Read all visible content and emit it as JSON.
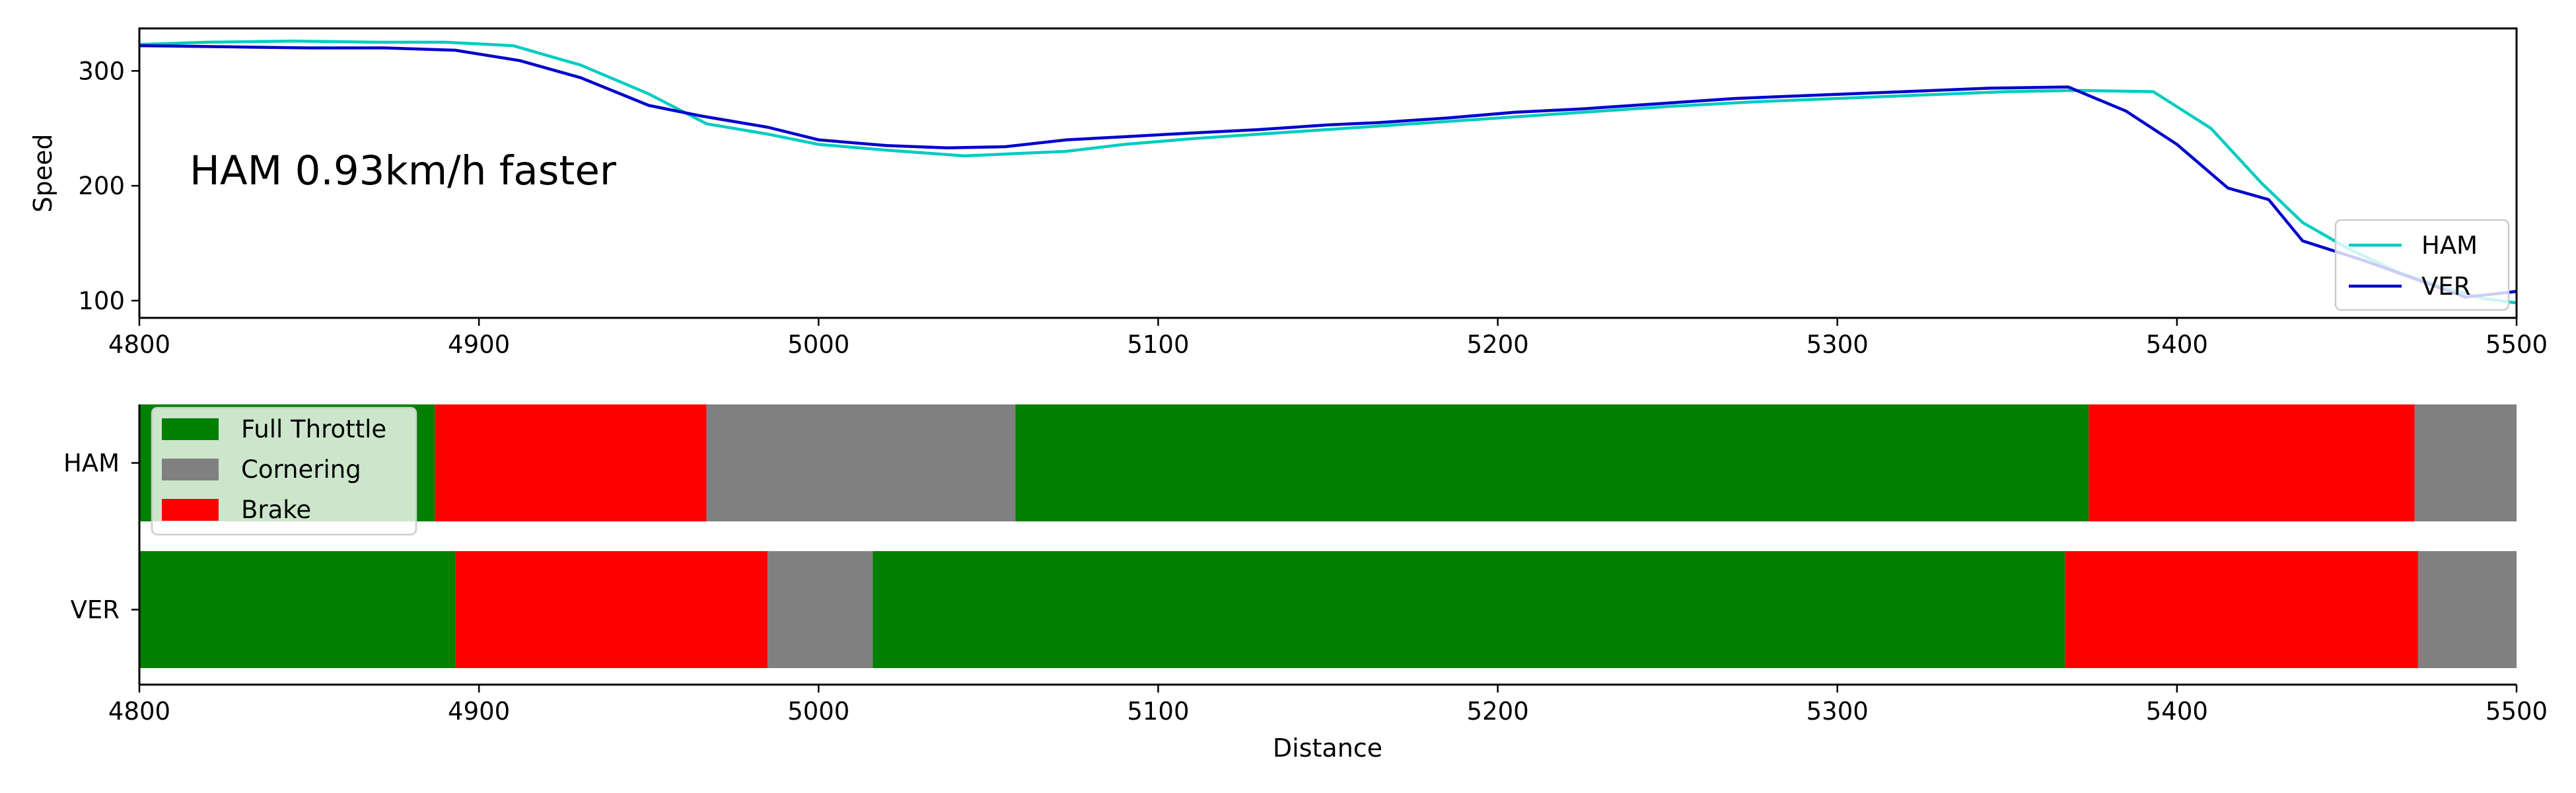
{
  "chart_data": [
    {
      "type": "line",
      "title": "",
      "xlabel": "",
      "ylabel": "Speed",
      "xlim": [
        4800,
        5500
      ],
      "ylim": [
        85,
        337
      ],
      "xticks": [
        4800,
        4900,
        5000,
        5100,
        5200,
        5300,
        5400,
        5500
      ],
      "yticks": [
        100,
        200,
        300
      ],
      "annotation": "HAM 0.93km/h faster",
      "legend": {
        "placement": "lower-right"
      },
      "grid": false,
      "series": [
        {
          "name": "HAM",
          "color": "#00ccc0",
          "x": [
            4800,
            4820,
            4845,
            4870,
            4890,
            4910,
            4930,
            4950,
            4967,
            4985,
            5000,
            5020,
            5043,
            5073,
            5090,
            5110,
            5130,
            5150,
            5175,
            5200,
            5225,
            5250,
            5275,
            5300,
            5325,
            5350,
            5370,
            5393,
            5410,
            5425,
            5437,
            5450,
            5465,
            5478,
            5490,
            5500
          ],
          "y": [
            323,
            325,
            326,
            325,
            325,
            322,
            305,
            280,
            254,
            245,
            236,
            231,
            226,
            230,
            236,
            241,
            245,
            249,
            254,
            259,
            264,
            269,
            273,
            276,
            279,
            282,
            283,
            282,
            250,
            202,
            168,
            146,
            125,
            112,
            102,
            98
          ]
        },
        {
          "name": "VER",
          "color": "#0000cc",
          "x": [
            4800,
            4825,
            4850,
            4872,
            4893,
            4912,
            4930,
            4950,
            4965,
            4985,
            5000,
            5020,
            5038,
            5055,
            5073,
            5092,
            5110,
            5130,
            5150,
            5165,
            5185,
            5205,
            5225,
            5245,
            5270,
            5295,
            5320,
            5345,
            5368,
            5385,
            5400,
            5415,
            5427,
            5437,
            5455,
            5470,
            5485,
            5500
          ],
          "y": [
            322,
            321,
            320,
            320,
            318,
            309,
            294,
            270,
            261,
            251,
            240,
            235,
            233,
            234,
            240,
            243,
            246,
            249,
            253,
            255,
            259,
            264,
            267,
            271,
            276,
            279,
            282,
            285,
            286,
            265,
            236,
            198,
            188,
            152,
            135,
            119,
            103,
            108
          ]
        }
      ]
    },
    {
      "type": "bar",
      "orientation": "horizontal-stacked",
      "xlabel": "Distance",
      "ylabel": "",
      "xlim": [
        4800,
        5500
      ],
      "xticks": [
        4800,
        4900,
        5000,
        5100,
        5200,
        5300,
        5400,
        5500
      ],
      "categories": [
        "HAM",
        "VER"
      ],
      "legend": {
        "placement": "upper-left",
        "entries": [
          {
            "label": "Full Throttle",
            "color": "#008000"
          },
          {
            "label": "Cornering",
            "color": "#808080"
          },
          {
            "label": "Brake",
            "color": "#ff0000"
          }
        ]
      },
      "segment_colors": {
        "Full Throttle": "#008000",
        "Cornering": "#808080",
        "Brake": "#ff0000"
      },
      "rows": [
        {
          "driver": "HAM",
          "segments": [
            {
              "state": "Full Throttle",
              "start": 4800,
              "end": 4887
            },
            {
              "state": "Brake",
              "start": 4887,
              "end": 4967
            },
            {
              "state": "Cornering",
              "start": 4967,
              "end": 5058
            },
            {
              "state": "Full Throttle",
              "start": 5058,
              "end": 5374
            },
            {
              "state": "Brake",
              "start": 5374,
              "end": 5470
            },
            {
              "state": "Cornering",
              "start": 5470,
              "end": 5500
            }
          ]
        },
        {
          "driver": "VER",
          "segments": [
            {
              "state": "Full Throttle",
              "start": 4800,
              "end": 4893
            },
            {
              "state": "Brake",
              "start": 4893,
              "end": 4985
            },
            {
              "state": "Cornering",
              "start": 4985,
              "end": 5016
            },
            {
              "state": "Full Throttle",
              "start": 5016,
              "end": 5367
            },
            {
              "state": "Brake",
              "start": 5367,
              "end": 5471
            },
            {
              "state": "Cornering",
              "start": 5471,
              "end": 5500
            }
          ]
        }
      ]
    }
  ]
}
